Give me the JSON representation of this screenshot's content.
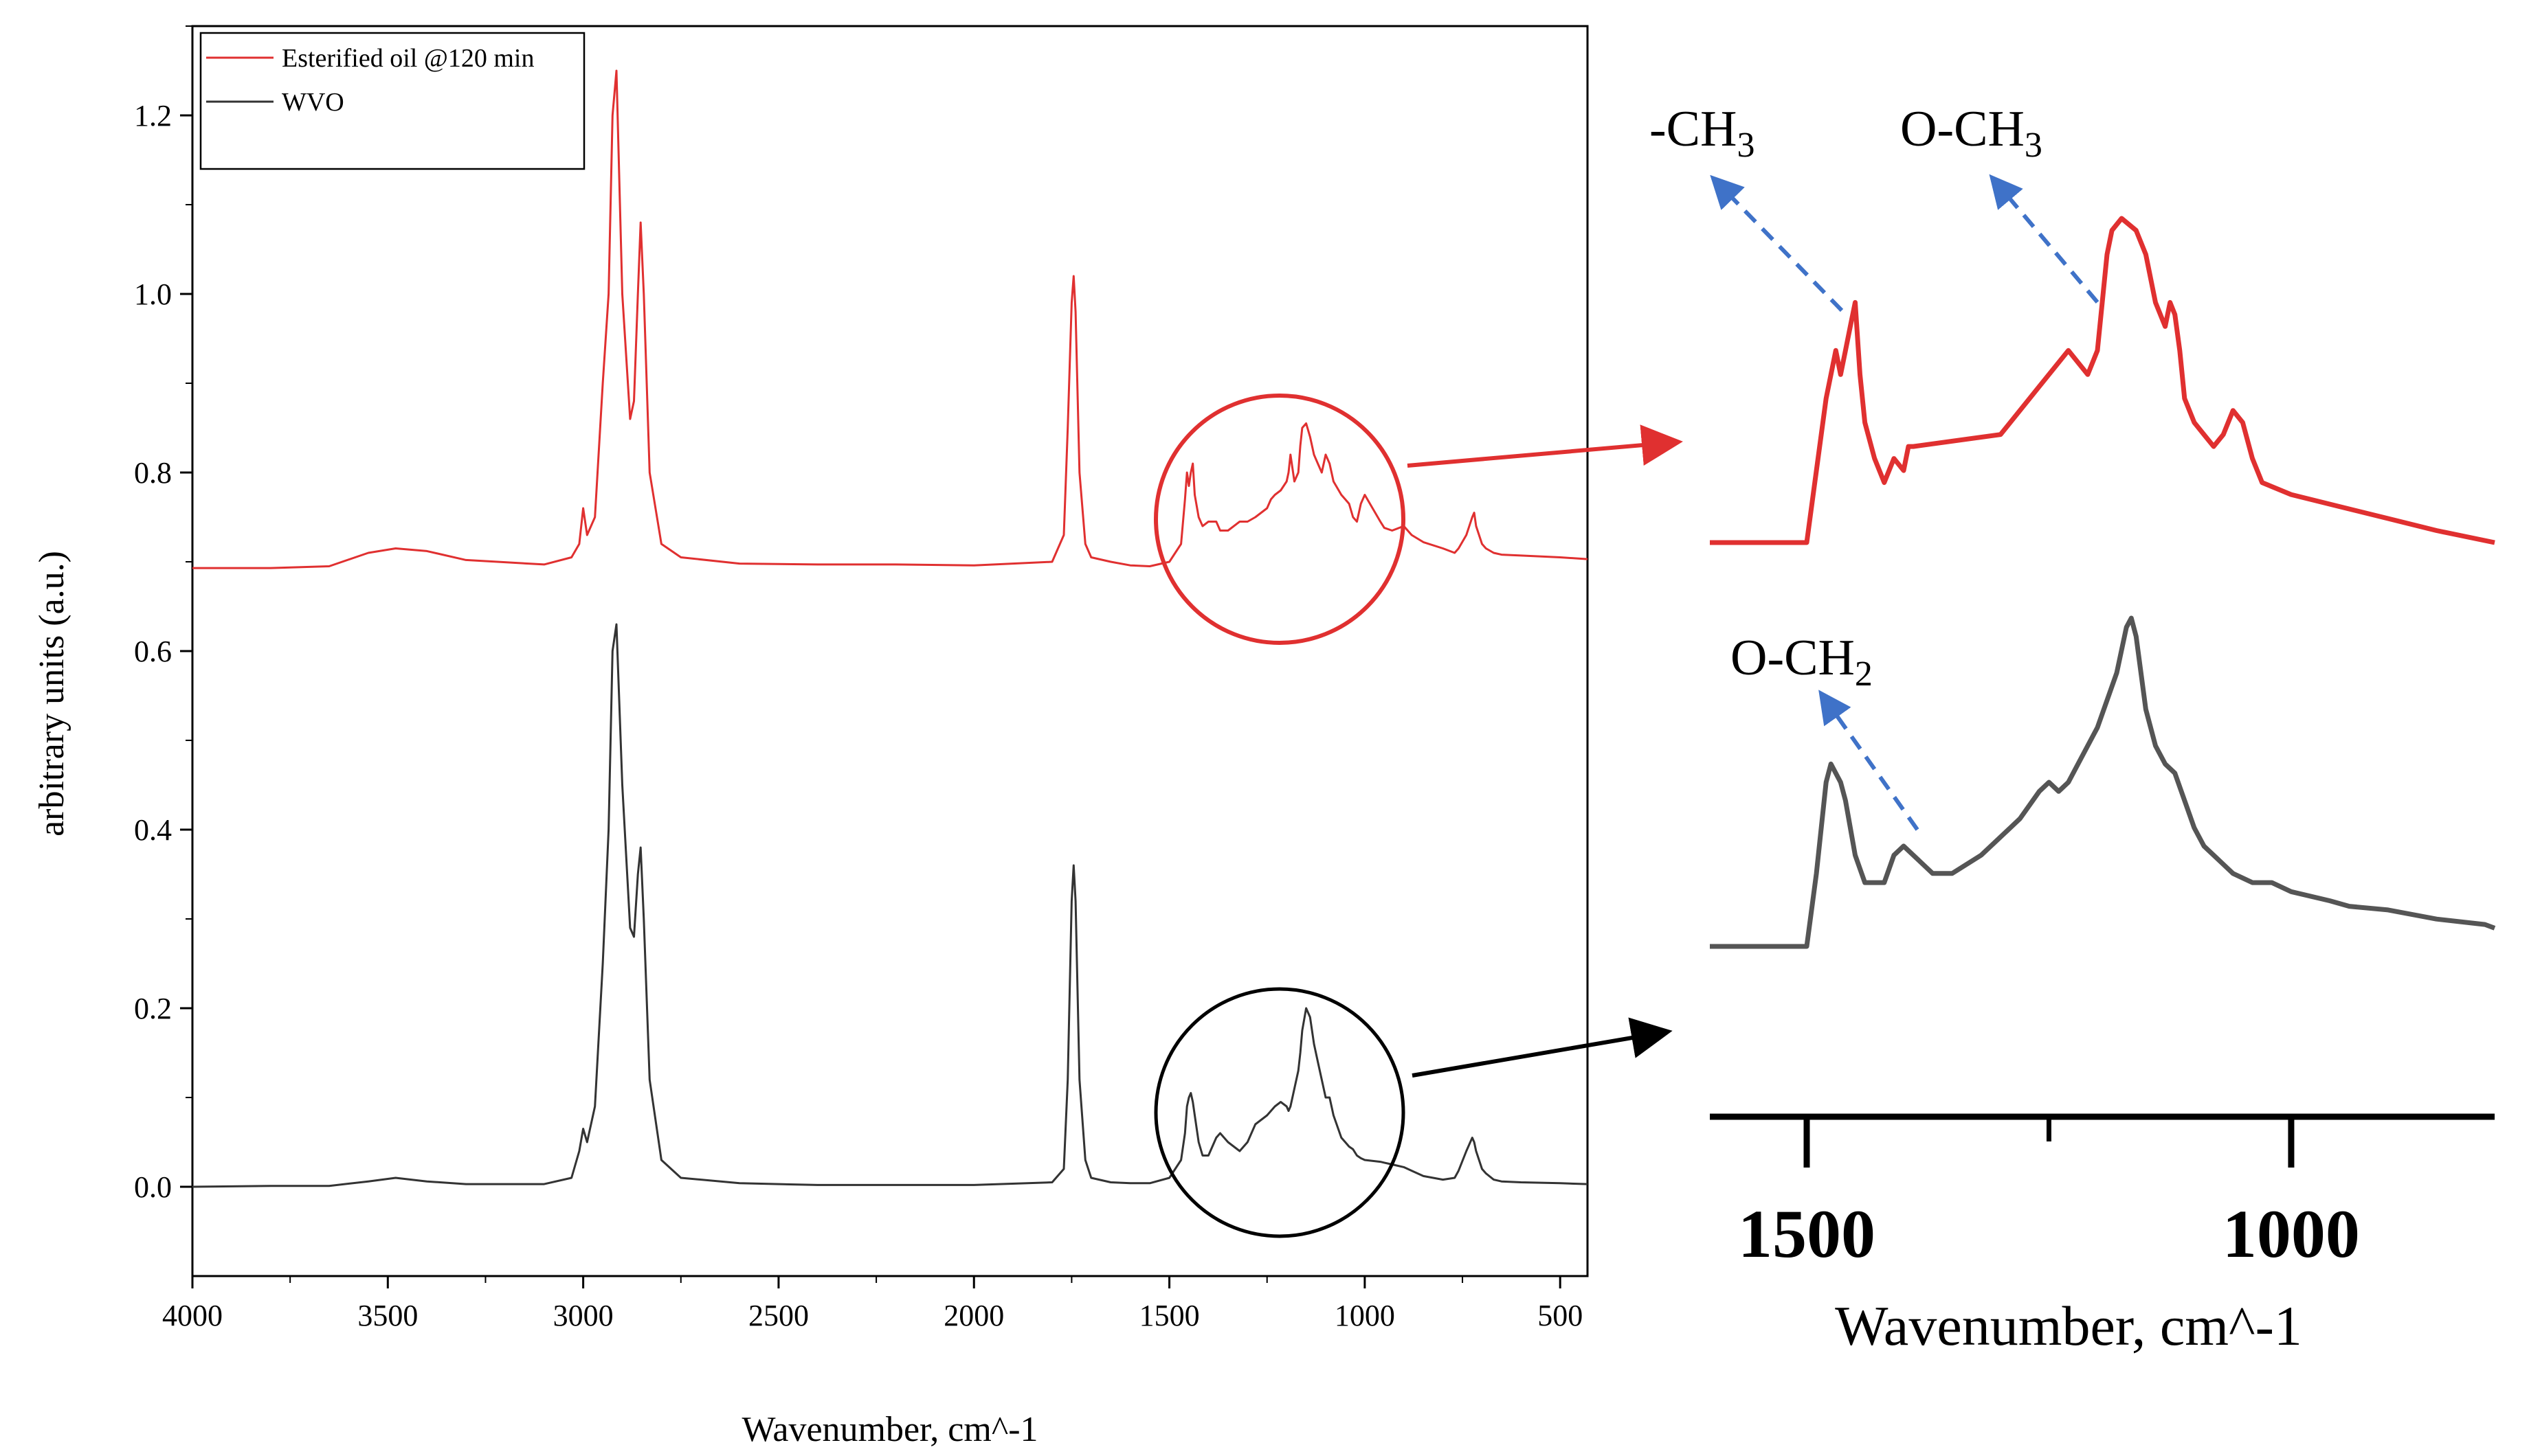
{
  "chart_data": [
    {
      "type": "line",
      "title": "",
      "xlabel": "Wavenumber, cm^-1",
      "ylabel": "arbitrary units (a.u.)",
      "xlim": [
        4000,
        430
      ],
      "ylim": [
        -0.1,
        1.3
      ],
      "xticks": [
        4000,
        3500,
        3000,
        2500,
        2000,
        1500,
        1000,
        500
      ],
      "yticks": [
        0.0,
        0.2,
        0.4,
        0.6,
        0.8,
        1.0,
        1.2
      ],
      "xtick_labels": [
        "4000",
        "3500",
        "3000",
        "2500",
        "2000",
        "1500",
        "1000",
        "500"
      ],
      "ytick_labels": [
        "0.0",
        "0.2",
        "0.4",
        "0.6",
        "0.8",
        "1.0",
        "1.2"
      ],
      "legend": {
        "position": "top-left",
        "entries": [
          "Esterified oil @120 min",
          "WVO"
        ]
      },
      "series": [
        {
          "name": "Esterified oil @120 min",
          "color": "#e03030",
          "x": [
            4000,
            3800,
            3650,
            3550,
            3480,
            3400,
            3300,
            3100,
            3030,
            3010,
            3000,
            2990,
            2970,
            2950,
            2935,
            2925,
            2915,
            2900,
            2880,
            2870,
            2860,
            2853,
            2845,
            2830,
            2800,
            2750,
            2600,
            2400,
            2200,
            2000,
            1800,
            1770,
            1760,
            1750,
            1745,
            1740,
            1730,
            1715,
            1700,
            1650,
            1600,
            1550,
            1500,
            1470,
            1460,
            1455,
            1450,
            1445,
            1440,
            1435,
            1425,
            1415,
            1400,
            1380,
            1370,
            1350,
            1320,
            1300,
            1280,
            1250,
            1240,
            1230,
            1215,
            1200,
            1195,
            1190,
            1180,
            1170,
            1165,
            1160,
            1150,
            1140,
            1130,
            1120,
            1110,
            1100,
            1090,
            1080,
            1060,
            1050,
            1040,
            1030,
            1020,
            1010,
            1000,
            960,
            950,
            930,
            900,
            880,
            850,
            800,
            770,
            760,
            740,
            725,
            720,
            715,
            700,
            690,
            670,
            650,
            600,
            500,
            430
          ],
          "values": [
            0.693,
            0.693,
            0.695,
            0.71,
            0.715,
            0.712,
            0.702,
            0.697,
            0.705,
            0.72,
            0.76,
            0.73,
            0.75,
            0.9,
            1.0,
            1.2,
            1.25,
            1.0,
            0.86,
            0.88,
            1.0,
            1.08,
            1.0,
            0.8,
            0.72,
            0.705,
            0.698,
            0.697,
            0.697,
            0.696,
            0.7,
            0.73,
            0.85,
            0.99,
            1.02,
            0.98,
            0.8,
            0.72,
            0.705,
            0.7,
            0.696,
            0.695,
            0.7,
            0.72,
            0.77,
            0.8,
            0.785,
            0.8,
            0.81,
            0.775,
            0.75,
            0.74,
            0.745,
            0.745,
            0.735,
            0.735,
            0.745,
            0.745,
            0.75,
            0.76,
            0.77,
            0.775,
            0.78,
            0.79,
            0.8,
            0.82,
            0.79,
            0.8,
            0.83,
            0.85,
            0.855,
            0.84,
            0.82,
            0.81,
            0.8,
            0.82,
            0.81,
            0.79,
            0.775,
            0.77,
            0.765,
            0.75,
            0.745,
            0.765,
            0.775,
            0.745,
            0.738,
            0.735,
            0.74,
            0.73,
            0.722,
            0.715,
            0.71,
            0.715,
            0.73,
            0.75,
            0.755,
            0.74,
            0.72,
            0.715,
            0.71,
            0.708,
            0.707,
            0.705,
            0.703
          ]
        },
        {
          "name": "WVO",
          "color": "#333333",
          "x": [
            4000,
            3800,
            3650,
            3550,
            3480,
            3400,
            3300,
            3100,
            3030,
            3010,
            3000,
            2990,
            2970,
            2950,
            2935,
            2925,
            2915,
            2900,
            2880,
            2870,
            2860,
            2853,
            2845,
            2830,
            2800,
            2750,
            2600,
            2400,
            2200,
            2000,
            1800,
            1770,
            1760,
            1750,
            1745,
            1740,
            1730,
            1715,
            1700,
            1650,
            1600,
            1550,
            1500,
            1470,
            1460,
            1455,
            1450,
            1445,
            1440,
            1435,
            1425,
            1415,
            1400,
            1380,
            1370,
            1350,
            1320,
            1300,
            1280,
            1250,
            1240,
            1230,
            1215,
            1200,
            1195,
            1190,
            1180,
            1170,
            1165,
            1160,
            1150,
            1140,
            1130,
            1120,
            1110,
            1100,
            1090,
            1080,
            1060,
            1050,
            1040,
            1030,
            1020,
            1010,
            1000,
            960,
            950,
            930,
            900,
            880,
            850,
            800,
            770,
            760,
            740,
            725,
            720,
            715,
            700,
            690,
            670,
            650,
            600,
            500,
            430
          ],
          "values": [
            0.0,
            0.001,
            0.001,
            0.006,
            0.01,
            0.006,
            0.003,
            0.003,
            0.01,
            0.04,
            0.065,
            0.05,
            0.09,
            0.25,
            0.4,
            0.6,
            0.63,
            0.45,
            0.29,
            0.28,
            0.35,
            0.38,
            0.3,
            0.12,
            0.03,
            0.01,
            0.004,
            0.002,
            0.002,
            0.002,
            0.005,
            0.02,
            0.12,
            0.32,
            0.36,
            0.32,
            0.12,
            0.03,
            0.01,
            0.005,
            0.004,
            0.004,
            0.01,
            0.03,
            0.06,
            0.09,
            0.1,
            0.105,
            0.095,
            0.08,
            0.05,
            0.035,
            0.035,
            0.055,
            0.06,
            0.05,
            0.04,
            0.05,
            0.07,
            0.08,
            0.085,
            0.09,
            0.095,
            0.09,
            0.085,
            0.09,
            0.11,
            0.13,
            0.15,
            0.175,
            0.2,
            0.19,
            0.16,
            0.14,
            0.12,
            0.1,
            0.1,
            0.08,
            0.055,
            0.05,
            0.045,
            0.042,
            0.035,
            0.032,
            0.03,
            0.028,
            0.027,
            0.025,
            0.022,
            0.018,
            0.012,
            0.008,
            0.01,
            0.018,
            0.04,
            0.055,
            0.05,
            0.04,
            0.02,
            0.015,
            0.008,
            0.006,
            0.005,
            0.004,
            0.003
          ]
        }
      ],
      "annotations": [
        {
          "type": "circle",
          "color": "#e03030",
          "label": "zoom region of Esterified oil @120 min",
          "x_center": 1200,
          "y_center": 0.775
        },
        {
          "type": "circle",
          "color": "#000000",
          "label": "zoom region of WVO",
          "x_center": 1200,
          "y_center": 0.085
        }
      ]
    },
    {
      "type": "line",
      "title": "",
      "xlabel": "Wavenumber, cm^-1",
      "ylabel": "",
      "xlim": [
        1600,
        790
      ],
      "xticks": [
        1500,
        1000
      ],
      "xtick_labels": [
        "1500",
        "1000"
      ],
      "series": [
        {
          "name": "Esterified oil @120 min (zoom)",
          "color": "#e03030",
          "x": [
            1600,
            1530,
            1500,
            1490,
            1480,
            1470,
            1465,
            1460,
            1455,
            1450,
            1445,
            1440,
            1430,
            1420,
            1410,
            1400,
            1395,
            1390,
            1300,
            1260,
            1230,
            1210,
            1200,
            1195,
            1190,
            1185,
            1175,
            1160,
            1150,
            1140,
            1130,
            1125,
            1120,
            1115,
            1110,
            1100,
            1090,
            1080,
            1070,
            1060,
            1050,
            1040,
            1030,
            1000,
            950,
            900,
            850,
            790
          ],
          "values": [
            0.72,
            0.72,
            0.72,
            0.75,
            0.78,
            0.8,
            0.79,
            0.8,
            0.81,
            0.82,
            0.79,
            0.77,
            0.755,
            0.745,
            0.755,
            0.75,
            0.76,
            0.76,
            0.765,
            0.785,
            0.8,
            0.79,
            0.8,
            0.82,
            0.84,
            0.85,
            0.855,
            0.85,
            0.84,
            0.82,
            0.81,
            0.82,
            0.815,
            0.8,
            0.78,
            0.77,
            0.765,
            0.76,
            0.765,
            0.775,
            0.77,
            0.755,
            0.745,
            0.74,
            0.735,
            0.73,
            0.725,
            0.72
          ]
        },
        {
          "name": "WVO (zoom)",
          "color": "#555555",
          "x": [
            1600,
            1530,
            1500,
            1490,
            1480,
            1475,
            1465,
            1460,
            1450,
            1440,
            1420,
            1410,
            1400,
            1380,
            1370,
            1350,
            1320,
            1300,
            1280,
            1260,
            1250,
            1240,
            1230,
            1220,
            1200,
            1180,
            1170,
            1165,
            1160,
            1150,
            1140,
            1130,
            1120,
            1110,
            1100,
            1090,
            1080,
            1070,
            1060,
            1040,
            1020,
            1000,
            960,
            940,
            900,
            850,
            800,
            790
          ],
          "values": [
            0.0,
            0.0,
            0.0,
            0.04,
            0.09,
            0.1,
            0.09,
            0.08,
            0.05,
            0.035,
            0.035,
            0.05,
            0.055,
            0.045,
            0.04,
            0.04,
            0.05,
            0.06,
            0.07,
            0.085,
            0.09,
            0.085,
            0.09,
            0.1,
            0.12,
            0.15,
            0.175,
            0.18,
            0.17,
            0.13,
            0.11,
            0.1,
            0.095,
            0.08,
            0.065,
            0.055,
            0.05,
            0.045,
            0.04,
            0.035,
            0.035,
            0.03,
            0.025,
            0.022,
            0.02,
            0.015,
            0.012,
            0.01
          ]
        }
      ],
      "annotations": [
        {
          "text_parts": [
            "-CH",
            "3"
          ],
          "target_series": "Esterified oil @120 min (zoom)",
          "color": "#3f72c8"
        },
        {
          "text_parts": [
            "O-CH",
            "3"
          ],
          "target_series": "Esterified oil @120 min (zoom)",
          "color": "#3f72c8"
        },
        {
          "text_parts": [
            "O-CH",
            "2"
          ],
          "target_series": "WVO (zoom)",
          "color": "#3f72c8"
        }
      ]
    }
  ],
  "colors": {
    "red": "#e03030",
    "black": "#000000",
    "gray": "#555555",
    "blue_arrow": "#3f72c8"
  }
}
